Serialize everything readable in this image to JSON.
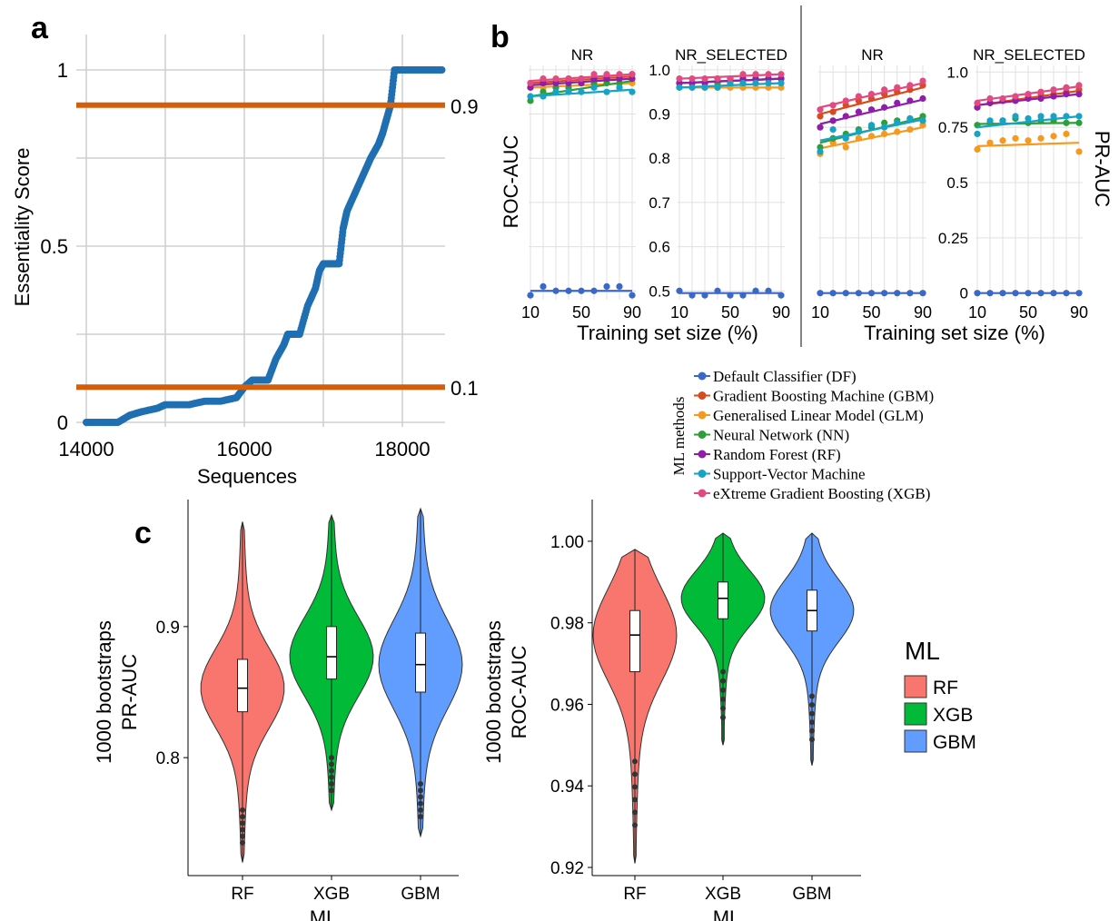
{
  "colors": {
    "grid": "#d0d0d0",
    "threshold": "#d35f0a",
    "essentiality_points": "#1f6fb2",
    "DF": "#3a68c9",
    "GBM": "#d84a1f",
    "GLM": "#f59a1f",
    "NN": "#2e9e3a",
    "RF": "#8e1fa6",
    "SVM": "#17a3c6",
    "XGB": "#e24a82",
    "violin_RF": "#f8766d",
    "violin_XGB": "#00ba38",
    "violin_GBM": "#619cff"
  },
  "panel_labels": {
    "a": "a",
    "b": "b",
    "c": "c"
  },
  "chart_data": [
    {
      "id": "panel_a",
      "type": "scatter",
      "xlabel": "Sequences",
      "ylabel": "Essentiality Score",
      "xlim": [
        14000,
        18600
      ],
      "ylim": [
        0,
        1
      ],
      "xticks": [
        "14000",
        "16000",
        "18000"
      ],
      "yticks": [
        "0",
        "0.5",
        "1"
      ],
      "xtick_values": [
        14000,
        16000,
        18000
      ],
      "ytick_values": [
        0,
        0.5,
        1
      ],
      "threshold_lines": [
        {
          "y": 0.9,
          "label": "0.9"
        },
        {
          "y": 0.1,
          "label": "0.1"
        }
      ],
      "points_x": [
        14000,
        14200,
        14400,
        14550,
        14700,
        14900,
        15000,
        15300,
        15500,
        15700,
        15900,
        16000,
        16100,
        16200,
        16300,
        16400,
        16500,
        16550,
        16600,
        16700,
        16800,
        16900,
        16950,
        17000,
        17100,
        17200,
        17250,
        17300,
        17400,
        17500,
        17600,
        17700,
        17750,
        17800,
        17850,
        17900,
        18100,
        18300,
        18500
      ],
      "points_y": [
        0.0,
        0.0,
        0.0,
        0.02,
        0.03,
        0.04,
        0.05,
        0.05,
        0.06,
        0.06,
        0.07,
        0.1,
        0.12,
        0.12,
        0.12,
        0.18,
        0.22,
        0.25,
        0.25,
        0.25,
        0.33,
        0.38,
        0.43,
        0.45,
        0.45,
        0.45,
        0.55,
        0.6,
        0.65,
        0.7,
        0.75,
        0.79,
        0.82,
        0.86,
        0.9,
        1.0,
        1.0,
        1.0,
        1.0
      ]
    },
    {
      "id": "panel_b",
      "type": "line",
      "xlabel": "Training set size (%)",
      "xlim": [
        10,
        90
      ],
      "xticks": [
        "10",
        "50",
        "90"
      ],
      "xtick_values": [
        10,
        50,
        90
      ],
      "x": [
        10,
        20,
        30,
        40,
        50,
        60,
        70,
        80,
        90
      ],
      "legend_title": "ML methods",
      "legend_entries": [
        "Default Classifier (DF)",
        "Gradient Boosting Machine (GBM)",
        "Generalised Linear Model (GLM)",
        "Neural Network (NN)",
        "Random Forest (RF)",
        "Support-Vector Machine",
        "eXtreme Gradient Boosting (XGB)"
      ],
      "groups": [
        {
          "metric": "ROC-AUC",
          "ylim": [
            0.48,
            1.01
          ],
          "yticks": [
            "0.5",
            "0.6",
            "0.7",
            "0.8",
            "0.9",
            "1.0"
          ],
          "ytick_values": [
            0.5,
            0.6,
            0.7,
            0.8,
            0.9,
            1.0
          ],
          "panels": [
            {
              "title": "NR",
              "series": [
                {
                  "key": "DF",
                  "values": [
                    0.49,
                    0.51,
                    0.5,
                    0.5,
                    0.5,
                    0.5,
                    0.51,
                    0.51,
                    0.49
                  ]
                },
                {
                  "key": "GBM",
                  "values": [
                    0.97,
                    0.97,
                    0.97,
                    0.98,
                    0.98,
                    0.98,
                    0.98,
                    0.98,
                    0.99
                  ]
                },
                {
                  "key": "GLM",
                  "values": [
                    0.96,
                    0.96,
                    0.96,
                    0.96,
                    0.97,
                    0.97,
                    0.97,
                    0.97,
                    0.97
                  ]
                },
                {
                  "key": "NN",
                  "values": [
                    0.93,
                    0.95,
                    0.96,
                    0.96,
                    0.97,
                    0.97,
                    0.97,
                    0.97,
                    0.98
                  ]
                },
                {
                  "key": "RF",
                  "values": [
                    0.96,
                    0.97,
                    0.97,
                    0.97,
                    0.97,
                    0.98,
                    0.98,
                    0.98,
                    0.98
                  ]
                },
                {
                  "key": "SVM",
                  "values": [
                    0.94,
                    0.94,
                    0.95,
                    0.95,
                    0.95,
                    0.96,
                    0.95,
                    0.96,
                    0.95
                  ]
                },
                {
                  "key": "XGB",
                  "values": [
                    0.97,
                    0.98,
                    0.98,
                    0.98,
                    0.98,
                    0.99,
                    0.99,
                    0.99,
                    0.99
                  ]
                }
              ]
            },
            {
              "title": "NR_SELECTED",
              "series": [
                {
                  "key": "DF",
                  "values": [
                    0.5,
                    0.49,
                    0.49,
                    0.5,
                    0.49,
                    0.49,
                    0.5,
                    0.5,
                    0.49
                  ]
                },
                {
                  "key": "GBM",
                  "values": [
                    0.97,
                    0.97,
                    0.97,
                    0.97,
                    0.98,
                    0.98,
                    0.98,
                    0.98,
                    0.98
                  ]
                },
                {
                  "key": "GLM",
                  "values": [
                    0.96,
                    0.96,
                    0.96,
                    0.96,
                    0.96,
                    0.96,
                    0.96,
                    0.96,
                    0.96
                  ]
                },
                {
                  "key": "NN",
                  "values": [
                    0.97,
                    0.97,
                    0.97,
                    0.97,
                    0.97,
                    0.97,
                    0.98,
                    0.98,
                    0.98
                  ]
                },
                {
                  "key": "RF",
                  "values": [
                    0.97,
                    0.97,
                    0.97,
                    0.98,
                    0.98,
                    0.98,
                    0.98,
                    0.98,
                    0.98
                  ]
                },
                {
                  "key": "SVM",
                  "values": [
                    0.96,
                    0.96,
                    0.96,
                    0.96,
                    0.97,
                    0.97,
                    0.97,
                    0.97,
                    0.97
                  ]
                },
                {
                  "key": "XGB",
                  "values": [
                    0.98,
                    0.98,
                    0.98,
                    0.98,
                    0.98,
                    0.99,
                    0.99,
                    0.99,
                    0.99
                  ]
                }
              ]
            }
          ]
        },
        {
          "metric": "PR-AUC",
          "ylim": [
            -0.03,
            1.03
          ],
          "yticks": [
            "0",
            "0.25",
            "0.5",
            "0.75",
            "1.0"
          ],
          "ytick_values": [
            0,
            0.25,
            0.5,
            0.75,
            1.0
          ],
          "panels": [
            {
              "title": "NR",
              "series": [
                {
                  "key": "DF",
                  "values": [
                    0.0,
                    0.0,
                    0.0,
                    0.0,
                    0.0,
                    0.0,
                    0.0,
                    0.0,
                    0.0
                  ]
                },
                {
                  "key": "GBM",
                  "values": [
                    0.8,
                    0.82,
                    0.85,
                    0.87,
                    0.88,
                    0.9,
                    0.91,
                    0.92,
                    0.94
                  ]
                },
                {
                  "key": "GLM",
                  "values": [
                    0.63,
                    0.68,
                    0.66,
                    0.7,
                    0.71,
                    0.72,
                    0.73,
                    0.74,
                    0.76
                  ]
                },
                {
                  "key": "NN",
                  "values": [
                    0.66,
                    0.7,
                    0.72,
                    0.74,
                    0.75,
                    0.77,
                    0.78,
                    0.79,
                    0.8
                  ]
                },
                {
                  "key": "RF",
                  "values": [
                    0.75,
                    0.78,
                    0.8,
                    0.82,
                    0.83,
                    0.84,
                    0.86,
                    0.87,
                    0.88
                  ]
                },
                {
                  "key": "SVM",
                  "values": [
                    0.64,
                    0.74,
                    0.7,
                    0.73,
                    0.76,
                    0.75,
                    0.77,
                    0.79,
                    0.78
                  ]
                },
                {
                  "key": "XGB",
                  "values": [
                    0.83,
                    0.85,
                    0.87,
                    0.89,
                    0.9,
                    0.92,
                    0.93,
                    0.94,
                    0.96
                  ]
                }
              ]
            },
            {
              "title": "NR_SELECTED",
              "series": [
                {
                  "key": "DF",
                  "values": [
                    0.0,
                    0.0,
                    0.0,
                    0.0,
                    0.0,
                    0.0,
                    0.0,
                    0.0,
                    0.0
                  ]
                },
                {
                  "key": "GBM",
                  "values": [
                    0.84,
                    0.86,
                    0.87,
                    0.88,
                    0.89,
                    0.9,
                    0.9,
                    0.91,
                    0.92
                  ]
                },
                {
                  "key": "GLM",
                  "values": [
                    0.65,
                    0.68,
                    0.69,
                    0.7,
                    0.69,
                    0.7,
                    0.71,
                    0.72,
                    0.64
                  ]
                },
                {
                  "key": "NN",
                  "values": [
                    0.76,
                    0.77,
                    0.78,
                    0.79,
                    0.77,
                    0.78,
                    0.78,
                    0.77,
                    0.77
                  ]
                },
                {
                  "key": "RF",
                  "values": [
                    0.84,
                    0.86,
                    0.87,
                    0.87,
                    0.88,
                    0.88,
                    0.89,
                    0.9,
                    0.9
                  ]
                },
                {
                  "key": "SVM",
                  "values": [
                    0.72,
                    0.78,
                    0.78,
                    0.8,
                    0.79,
                    0.8,
                    0.8,
                    0.8,
                    0.8
                  ]
                },
                {
                  "key": "XGB",
                  "values": [
                    0.86,
                    0.88,
                    0.88,
                    0.89,
                    0.9,
                    0.91,
                    0.92,
                    0.93,
                    0.94
                  ]
                }
              ]
            }
          ]
        }
      ]
    },
    {
      "id": "panel_c_pr",
      "type": "violin",
      "xlabel": "ML",
      "ylabel": [
        "1000 bootstraps",
        "PR-AUC"
      ],
      "categories": [
        "RF",
        "XGB",
        "GBM"
      ],
      "ylim": [
        0.71,
        0.99
      ],
      "yticks": [
        "0.8",
        "0.9"
      ],
      "ytick_values": [
        0.8,
        0.9
      ],
      "distributions": [
        {
          "name": "RF",
          "min": 0.72,
          "q1": 0.835,
          "median": 0.853,
          "q3": 0.875,
          "max": 0.98,
          "whisker_low": 0.76,
          "whisker_high": 0.94
        },
        {
          "name": "XGB",
          "min": 0.76,
          "q1": 0.86,
          "median": 0.877,
          "q3": 0.9,
          "max": 0.985,
          "whisker_low": 0.8,
          "whisker_high": 0.96
        },
        {
          "name": "GBM",
          "min": 0.74,
          "q1": 0.85,
          "median": 0.871,
          "q3": 0.895,
          "max": 0.99,
          "whisker_low": 0.78,
          "whisker_high": 0.96
        }
      ]
    },
    {
      "id": "panel_c_roc",
      "type": "violin",
      "xlabel": "ML",
      "ylabel": [
        "1000 bootstraps",
        "ROC-AUC"
      ],
      "categories": [
        "RF",
        "XGB",
        "GBM"
      ],
      "ylim": [
        0.918,
        1.008
      ],
      "yticks": [
        "0.92",
        "0.94",
        "0.96",
        "0.98",
        "1.00"
      ],
      "ytick_values": [
        0.92,
        0.94,
        0.96,
        0.98,
        1.0
      ],
      "legend_title": "ML",
      "legend_entries": [
        "RF",
        "XGB",
        "GBM"
      ],
      "distributions": [
        {
          "name": "RF",
          "min": 0.921,
          "q1": 0.968,
          "median": 0.977,
          "q3": 0.983,
          "max": 0.998,
          "whisker_low": 0.946,
          "whisker_high": 0.996
        },
        {
          "name": "XGB",
          "min": 0.95,
          "q1": 0.981,
          "median": 0.986,
          "q3": 0.99,
          "max": 1.002,
          "whisker_low": 0.968,
          "whisker_high": 0.999
        },
        {
          "name": "GBM",
          "min": 0.945,
          "q1": 0.978,
          "median": 0.983,
          "q3": 0.988,
          "max": 1.002,
          "whisker_low": 0.962,
          "whisker_high": 0.999
        }
      ]
    }
  ]
}
